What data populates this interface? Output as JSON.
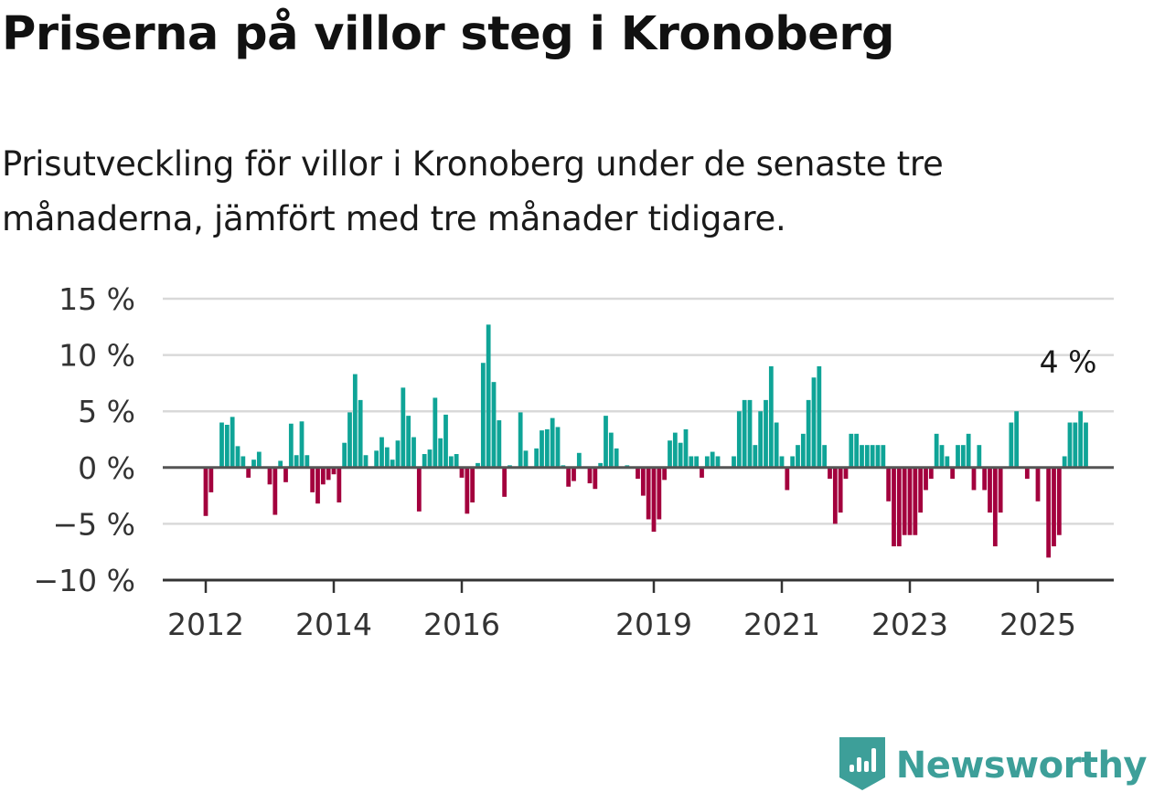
{
  "title": "Priserna på villor steg i Kronoberg",
  "subtitle": "Prisutveckling för villor i Kronoberg under de senaste tre månaderna, jämfört med tre månader tidigare.",
  "brand": {
    "name": "Newsworthy",
    "icon": "newsworthy-logo-icon",
    "color": "#3d9f99"
  },
  "colors": {
    "positive": "#0fa497",
    "negative": "#a3003d",
    "grid": "#d9d9d9",
    "zero": "#555555"
  },
  "chart_data": {
    "type": "bar",
    "title": "Priserna på villor steg i Kronoberg",
    "xlabel": "",
    "ylabel": "",
    "x_start": "2012-01",
    "x_end": "2025-07",
    "ylim": [
      -10,
      15
    ],
    "y_ticks": [
      {
        "value": 15,
        "label": "15 %"
      },
      {
        "value": 10,
        "label": "10 %"
      },
      {
        "value": 5,
        "label": "5 %"
      },
      {
        "value": 0,
        "label": "0 %"
      },
      {
        "value": -5,
        "label": "−5 %"
      },
      {
        "value": -10,
        "label": "−10 %"
      }
    ],
    "x_ticks": [
      {
        "value": "2012-01",
        "label": "2012"
      },
      {
        "value": "2014-01",
        "label": "2014"
      },
      {
        "value": "2016-01",
        "label": "2016"
      },
      {
        "value": "2019-01",
        "label": "2019"
      },
      {
        "value": "2021-01",
        "label": "2021"
      },
      {
        "value": "2023-01",
        "label": "2023"
      },
      {
        "value": "2025-01",
        "label": "2025"
      }
    ],
    "grid": true,
    "annotation": {
      "x": "2025-07",
      "value": 4,
      "label": "4 %"
    },
    "series": [
      {
        "values": [
          -4.3,
          -2.2,
          -0.1,
          4.0,
          3.8,
          4.5,
          1.9,
          1.0,
          -0.9,
          0.7,
          1.4,
          0,
          -1.5,
          -4.2,
          0.6,
          -1.3,
          3.9,
          1.1,
          4.1,
          1.1,
          -2.2,
          -3.2,
          -1.5,
          -1.1,
          -0.6,
          -3.1,
          2.2,
          4.9,
          8.3,
          6.0,
          1.1,
          0,
          1.5,
          2.7,
          1.8,
          0.7,
          2.4,
          7.1,
          4.6,
          2.7,
          -3.9,
          1.2,
          1.6,
          6.2,
          2.6,
          4.7,
          1.0,
          1.2,
          -0.9,
          -4.1,
          -3.1,
          0.4,
          9.3,
          12.7,
          7.6,
          4.2,
          -2.6,
          0.2,
          0,
          4.9,
          1.5,
          0,
          1.7,
          3.3,
          3.4,
          4.4,
          3.6,
          0.2,
          -1.7,
          -1.2,
          1.3,
          0,
          -1.4,
          -1.9,
          0.4,
          4.6,
          3.1,
          1.7,
          0,
          0.2,
          0,
          -1.0,
          -2.5,
          -4.6,
          -5.7,
          -4.6,
          -1.1,
          2.4,
          3.1,
          2.2,
          3.4,
          1.0,
          1.0,
          -0.9,
          1.0,
          1.4,
          1.0,
          0,
          0,
          1.0,
          5.0,
          6.0,
          6.0,
          2.0,
          5.0,
          6.0,
          9.0,
          4.0,
          1.0,
          -2.0,
          1.0,
          2.0,
          3.0,
          6.0,
          8.0,
          9.0,
          2.0,
          -1.0,
          -5.0,
          -4.0,
          -1.0,
          3.0,
          3.0,
          2.0,
          2.0,
          2.0,
          2.0,
          2.0,
          -3.0,
          -7.0,
          -7.0,
          -6.0,
          -6.0,
          -6.0,
          -4.0,
          -2.0,
          -1.0,
          3.0,
          2.0,
          1.0,
          -1.0,
          2.0,
          2.0,
          3.0,
          -2.0,
          2.0,
          -2.0,
          -4.0,
          -7.0,
          -4.0,
          0,
          4.0,
          5.0,
          0,
          -1.0,
          0,
          -3.0,
          0,
          -8.0,
          -7.0,
          -6.0,
          1.0,
          4.0,
          4.0,
          5.0,
          4.0
        ]
      }
    ]
  }
}
